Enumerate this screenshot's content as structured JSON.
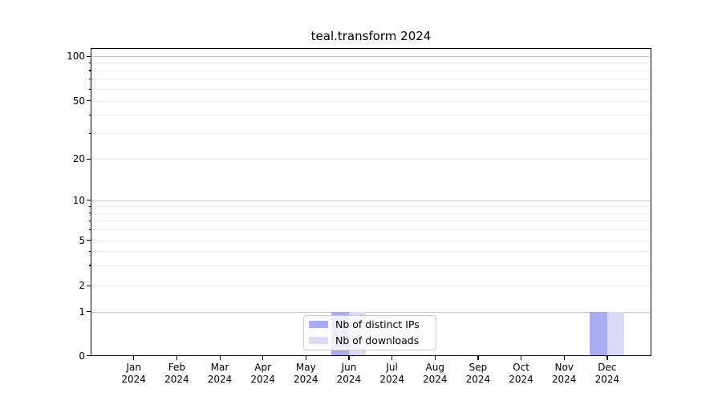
{
  "chart_data": {
    "type": "bar",
    "title": "teal.transform 2024",
    "x_categories": [
      "Jan",
      "Feb",
      "Mar",
      "Apr",
      "May",
      "Jun",
      "Jul",
      "Aug",
      "Sep",
      "Oct",
      "Nov",
      "Dec"
    ],
    "x_year": "2024",
    "series": [
      {
        "name": "Nb of distinct IPs",
        "color": "#aaabf4",
        "values": [
          0,
          0,
          0,
          0,
          0,
          1,
          0,
          0,
          0,
          0,
          0,
          1
        ]
      },
      {
        "name": "Nb of downloads",
        "color": "#d9daf6",
        "values": [
          0,
          0,
          0,
          0,
          0,
          1,
          0,
          0,
          0,
          0,
          0,
          1
        ]
      }
    ],
    "yscale": "symlog",
    "ylim": [
      0,
      100
    ],
    "ytick_values": [
      0,
      1,
      2,
      5,
      10,
      20,
      50,
      100
    ],
    "ytick_labels": [
      "0",
      "1",
      "2",
      "5",
      "10",
      "20",
      "50",
      "100"
    ],
    "y_major_gridlines": [
      1,
      10,
      100
    ],
    "y_minor_gridlines": [
      2,
      3,
      4,
      5,
      6,
      7,
      8,
      9,
      20,
      30,
      40,
      50,
      60,
      70,
      80,
      90
    ],
    "grid": "on",
    "legend_position": "inside-bottom-center",
    "colors": {
      "bar_distinct_ips": "#aaabf4",
      "bar_downloads": "#d9daf6",
      "grid_major": "#c9c9c9",
      "grid_minor": "#ededed",
      "axis": "#000000"
    }
  }
}
